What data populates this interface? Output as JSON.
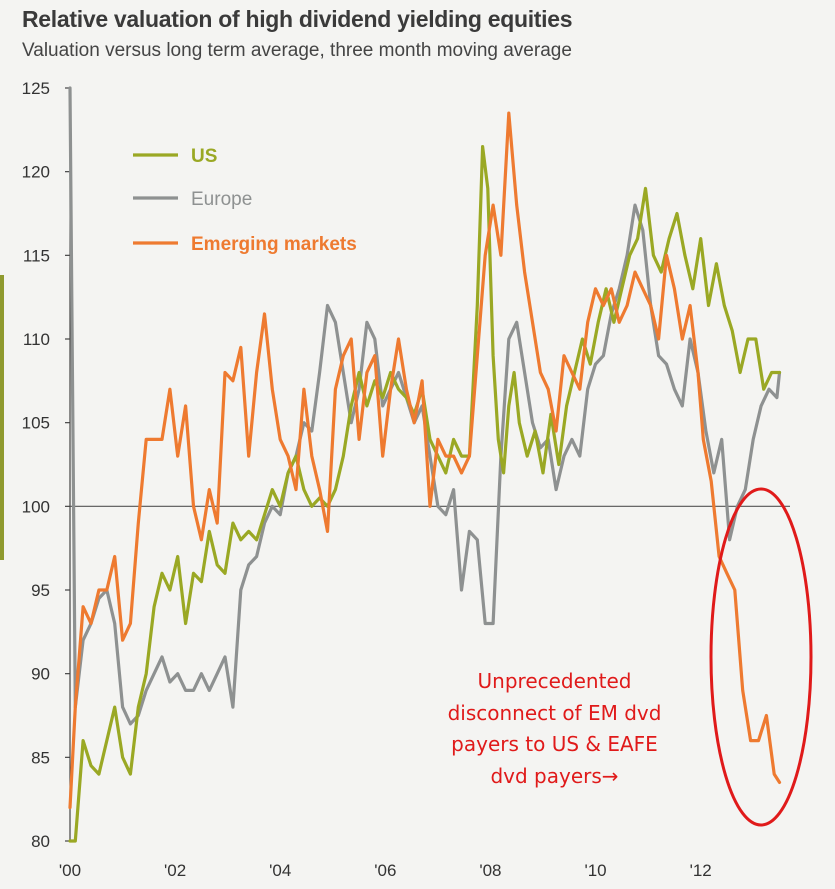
{
  "header": {
    "title": "Relative valuation of high dividend yielding equities",
    "subtitle": "Valuation versus long term average, three month moving average"
  },
  "annotation": {
    "text": "Unprecedented disconnect of EM dvd payers to US & EAFE dvd payers→",
    "color": "#e01a1a"
  },
  "chart_data": {
    "type": "line",
    "title": "Relative valuation of high dividend yielding equities",
    "subtitle": "Valuation versus long term average, three month moving average",
    "xlabel": "",
    "ylabel": "",
    "xlim": [
      2000,
      2013.7
    ],
    "ylim": [
      80,
      125
    ],
    "yticks": [
      80,
      85,
      90,
      95,
      100,
      105,
      110,
      115,
      120,
      125
    ],
    "xticks": [
      {
        "value": 2000,
        "label": "'00"
      },
      {
        "value": 2002,
        "label": "'02"
      },
      {
        "value": 2004,
        "label": "'04"
      },
      {
        "value": 2006,
        "label": "'06"
      },
      {
        "value": 2008,
        "label": "'08"
      },
      {
        "value": 2010,
        "label": "'10"
      },
      {
        "value": 2012,
        "label": "'12"
      }
    ],
    "reference_line": 100,
    "grid": false,
    "legend": {
      "placement": "top-left",
      "entries": [
        "US",
        "Europe",
        "Emerging markets"
      ]
    },
    "series": [
      {
        "name": "US",
        "color": "#9aa824",
        "x": [
          2000.0,
          2000.1,
          2000.25,
          2000.4,
          2000.55,
          2000.7,
          2000.85,
          2001.0,
          2001.15,
          2001.3,
          2001.45,
          2001.6,
          2001.75,
          2001.9,
          2002.05,
          2002.2,
          2002.35,
          2002.5,
          2002.65,
          2002.8,
          2002.95,
          2003.1,
          2003.25,
          2003.4,
          2003.55,
          2003.7,
          2003.85,
          2004.0,
          2004.15,
          2004.3,
          2004.45,
          2004.6,
          2004.75,
          2004.9,
          2005.05,
          2005.2,
          2005.35,
          2005.5,
          2005.65,
          2005.8,
          2005.95,
          2006.1,
          2006.25,
          2006.4,
          2006.55,
          2006.7,
          2006.85,
          2007.0,
          2007.15,
          2007.3,
          2007.45,
          2007.6,
          2007.75,
          2007.85,
          2007.95,
          2008.05,
          2008.15,
          2008.25,
          2008.35,
          2008.45,
          2008.55,
          2008.7,
          2008.85,
          2009.0,
          2009.15,
          2009.3,
          2009.45,
          2009.6,
          2009.75,
          2009.9,
          2010.05,
          2010.2,
          2010.35,
          2010.5,
          2010.65,
          2010.8,
          2010.95,
          2011.1,
          2011.25,
          2011.4,
          2011.55,
          2011.7,
          2011.85,
          2012.0,
          2012.15,
          2012.3,
          2012.45,
          2012.6,
          2012.75,
          2012.9,
          2013.05,
          2013.2,
          2013.35,
          2013.5
        ],
        "values": [
          80,
          80,
          86,
          84.5,
          84,
          86,
          88,
          85,
          84,
          88,
          90,
          94,
          96,
          95,
          97,
          93,
          96,
          95.5,
          98.5,
          96.5,
          96,
          99,
          98,
          98.5,
          98,
          99.5,
          101,
          100,
          102,
          103,
          101,
          100,
          100.5,
          100,
          101,
          103,
          106,
          108,
          106,
          107.5,
          106.5,
          108,
          107,
          106.5,
          105.5,
          107,
          104,
          103,
          102,
          104,
          103,
          103,
          112,
          121.5,
          119,
          109,
          104,
          102,
          106,
          108,
          105,
          103,
          104.5,
          102,
          105.5,
          102.5,
          106,
          108,
          110,
          108.5,
          111,
          113,
          111,
          113,
          115,
          116,
          119,
          115,
          114,
          116,
          117.5,
          115,
          113,
          116,
          112,
          114.5,
          112,
          110.5,
          108,
          110,
          110,
          107,
          108,
          108
        ]
      },
      {
        "name": "Europe",
        "color": "#8e9191",
        "x": [
          2000.0,
          2000.1,
          2000.25,
          2000.4,
          2000.55,
          2000.7,
          2000.85,
          2001.0,
          2001.15,
          2001.3,
          2001.45,
          2001.6,
          2001.75,
          2001.9,
          2002.05,
          2002.2,
          2002.35,
          2002.5,
          2002.65,
          2002.8,
          2002.95,
          2003.1,
          2003.25,
          2003.4,
          2003.55,
          2003.7,
          2003.85,
          2004.0,
          2004.15,
          2004.3,
          2004.45,
          2004.6,
          2004.75,
          2004.9,
          2005.05,
          2005.2,
          2005.35,
          2005.5,
          2005.65,
          2005.8,
          2005.95,
          2006.1,
          2006.25,
          2006.4,
          2006.55,
          2006.7,
          2006.85,
          2007.0,
          2007.15,
          2007.3,
          2007.45,
          2007.6,
          2007.75,
          2007.9,
          2008.05,
          2008.2,
          2008.35,
          2008.5,
          2008.65,
          2008.8,
          2008.95,
          2009.1,
          2009.25,
          2009.4,
          2009.55,
          2009.7,
          2009.85,
          2010.0,
          2010.15,
          2010.3,
          2010.45,
          2010.6,
          2010.75,
          2010.9,
          2011.05,
          2011.2,
          2011.35,
          2011.5,
          2011.65,
          2011.8,
          2011.95,
          2012.1,
          2012.25,
          2012.4,
          2012.55,
          2012.7,
          2012.85,
          2013.0,
          2013.15,
          2013.3,
          2013.45,
          2013.5
        ],
        "values": [
          125,
          88,
          92,
          93,
          94.5,
          95,
          93,
          88,
          87,
          87.5,
          89,
          90,
          91,
          89.5,
          90,
          89,
          89,
          90,
          89,
          90,
          91,
          88,
          95,
          96.5,
          97,
          99,
          100,
          99.5,
          102,
          103,
          105,
          104.5,
          108,
          112,
          111,
          108,
          105,
          107,
          111,
          110,
          106,
          107,
          108,
          106.5,
          105,
          106,
          103,
          100,
          99.5,
          101,
          95,
          98.5,
          98,
          93,
          93,
          103,
          110,
          111,
          108,
          105,
          103.5,
          104,
          101,
          103,
          104,
          103,
          107,
          108.5,
          109,
          111.5,
          113,
          115,
          118,
          116.5,
          112,
          109,
          108.5,
          107,
          106,
          110,
          108,
          104.5,
          102,
          104,
          98,
          100,
          101,
          104,
          106,
          107,
          106.5,
          108
        ]
      },
      {
        "name": "Emerging markets",
        "color": "#ee7a30",
        "x": [
          2000.0,
          2000.1,
          2000.25,
          2000.4,
          2000.55,
          2000.7,
          2000.85,
          2001.0,
          2001.15,
          2001.3,
          2001.45,
          2001.6,
          2001.75,
          2001.9,
          2002.05,
          2002.2,
          2002.35,
          2002.5,
          2002.65,
          2002.8,
          2002.95,
          2003.1,
          2003.25,
          2003.4,
          2003.55,
          2003.7,
          2003.85,
          2004.0,
          2004.15,
          2004.3,
          2004.45,
          2004.6,
          2004.75,
          2004.9,
          2005.05,
          2005.2,
          2005.35,
          2005.5,
          2005.65,
          2005.8,
          2005.95,
          2006.1,
          2006.25,
          2006.4,
          2006.55,
          2006.7,
          2006.85,
          2007.0,
          2007.15,
          2007.3,
          2007.45,
          2007.6,
          2007.75,
          2007.9,
          2008.05,
          2008.2,
          2008.35,
          2008.5,
          2008.65,
          2008.8,
          2008.95,
          2009.1,
          2009.25,
          2009.4,
          2009.55,
          2009.7,
          2009.85,
          2010.0,
          2010.15,
          2010.3,
          2010.45,
          2010.6,
          2010.75,
          2010.9,
          2011.05,
          2011.2,
          2011.35,
          2011.5,
          2011.65,
          2011.8,
          2011.95,
          2012.05,
          2012.2,
          2012.35,
          2012.5,
          2012.65,
          2012.8,
          2012.95,
          2013.1,
          2013.25,
          2013.4,
          2013.5
        ],
        "values": [
          82,
          88,
          94,
          93,
          95,
          95,
          97,
          92,
          93,
          99,
          104,
          104,
          104,
          107,
          103,
          106,
          100,
          98,
          101,
          99,
          108,
          107.5,
          109.5,
          103,
          108,
          111.5,
          107,
          104,
          103,
          101,
          107,
          103,
          101,
          98.5,
          107,
          109,
          110,
          104,
          108,
          109,
          103,
          107,
          110,
          107,
          105,
          107.5,
          100,
          104,
          103,
          103,
          102,
          103,
          109,
          115,
          118,
          115,
          123.5,
          118,
          114,
          111,
          108,
          107,
          104.5,
          109,
          108,
          107,
          111,
          113,
          112,
          113,
          111,
          112,
          114,
          113,
          112,
          110,
          115,
          113,
          110,
          112,
          108,
          104,
          101.5,
          97,
          96,
          95,
          89,
          86,
          86,
          87.5,
          84,
          83.5
        ]
      }
    ]
  }
}
